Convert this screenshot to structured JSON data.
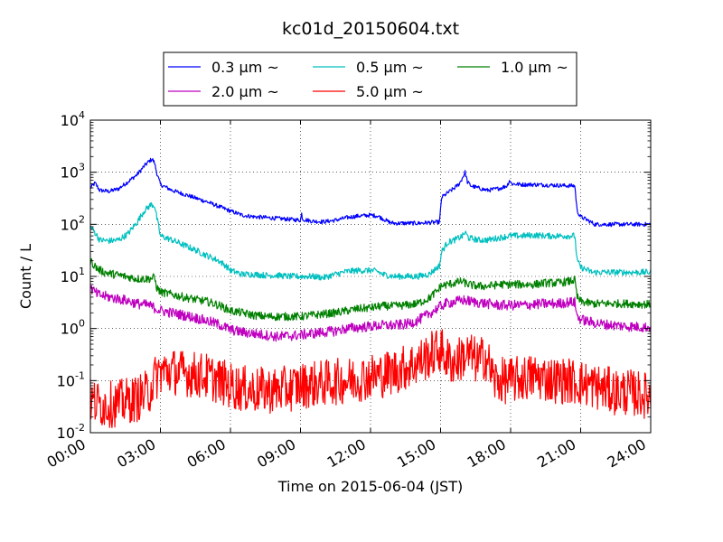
{
  "chart_data": {
    "type": "line",
    "title": "kc01d_20150604.txt",
    "xlabel": "Time on 2015-06-04 (JST)",
    "ylabel": "Count / L",
    "y_scale": "log",
    "ylim": [
      0.01,
      10000
    ],
    "xlim_hours": [
      0,
      24
    ],
    "x_tick_labels": [
      "00:00",
      "03:00",
      "06:00",
      "09:00",
      "12:00",
      "15:00",
      "18:00",
      "21:00",
      "24:00"
    ],
    "y_ticks": [
      {
        "base": "10",
        "exp": "-2"
      },
      {
        "base": "10",
        "exp": "-1"
      },
      {
        "base": "10",
        "exp": "0"
      },
      {
        "base": "10",
        "exp": "1"
      },
      {
        "base": "10",
        "exp": "2"
      },
      {
        "base": "10",
        "exp": "3"
      },
      {
        "base": "10",
        "exp": "4"
      }
    ],
    "grid": true,
    "legend_position": "top",
    "series": [
      {
        "name": "0.3 μm ~",
        "color": "#0000ff",
        "noise": 0.04,
        "points": [
          [
            0,
            500
          ],
          [
            0.2,
            620
          ],
          [
            0.4,
            450
          ],
          [
            0.8,
            430
          ],
          [
            1.2,
            480
          ],
          [
            1.6,
            650
          ],
          [
            2.0,
            900
          ],
          [
            2.3,
            1300
          ],
          [
            2.5,
            1600
          ],
          [
            2.65,
            1800
          ],
          [
            2.75,
            1500
          ],
          [
            2.85,
            950
          ],
          [
            3.0,
            580
          ],
          [
            3.5,
            450
          ],
          [
            4.0,
            380
          ],
          [
            4.5,
            320
          ],
          [
            5.0,
            270
          ],
          [
            5.5,
            220
          ],
          [
            6.0,
            180
          ],
          [
            6.5,
            150
          ],
          [
            7.0,
            140
          ],
          [
            7.5,
            135
          ],
          [
            8.0,
            130
          ],
          [
            8.5,
            125
          ],
          [
            9.0,
            120
          ],
          [
            9.05,
            160
          ],
          [
            9.1,
            125
          ],
          [
            9.5,
            115
          ],
          [
            10.0,
            112
          ],
          [
            10.5,
            120
          ],
          [
            11.0,
            135
          ],
          [
            11.5,
            145
          ],
          [
            12.0,
            150
          ],
          [
            12.3,
            145
          ],
          [
            12.5,
            130
          ],
          [
            12.8,
            110
          ],
          [
            13.0,
            105
          ],
          [
            14.0,
            105
          ],
          [
            14.5,
            108
          ],
          [
            14.95,
            110
          ],
          [
            15.05,
            330
          ],
          [
            15.3,
            400
          ],
          [
            15.6,
            500
          ],
          [
            15.8,
            600
          ],
          [
            15.95,
            800
          ],
          [
            16.05,
            1000
          ],
          [
            16.15,
            650
          ],
          [
            16.3,
            550
          ],
          [
            16.6,
            500
          ],
          [
            17.0,
            450
          ],
          [
            17.3,
            470
          ],
          [
            17.6,
            500
          ],
          [
            17.85,
            550
          ],
          [
            17.95,
            700
          ],
          [
            18.05,
            600
          ],
          [
            18.5,
            580
          ],
          [
            19.0,
            580
          ],
          [
            19.5,
            570
          ],
          [
            20.0,
            560
          ],
          [
            20.5,
            550
          ],
          [
            20.75,
            550
          ],
          [
            20.85,
            180
          ],
          [
            21.0,
            140
          ],
          [
            21.3,
            120
          ],
          [
            21.6,
            100
          ],
          [
            22.0,
            100
          ],
          [
            23.0,
            100
          ],
          [
            24.0,
            100
          ]
        ]
      },
      {
        "name": "0.5 μm ~",
        "color": "#00bfbf",
        "noise": 0.06,
        "points": [
          [
            0,
            90
          ],
          [
            0.15,
            75
          ],
          [
            0.4,
            50
          ],
          [
            0.8,
            48
          ],
          [
            1.2,
            50
          ],
          [
            1.6,
            65
          ],
          [
            2.0,
            110
          ],
          [
            2.3,
            180
          ],
          [
            2.6,
            240
          ],
          [
            2.75,
            230
          ],
          [
            2.85,
            130
          ],
          [
            3.0,
            60
          ],
          [
            3.5,
            50
          ],
          [
            4.0,
            40
          ],
          [
            4.5,
            32
          ],
          [
            5.0,
            25
          ],
          [
            5.5,
            20
          ],
          [
            5.8,
            16
          ],
          [
            6.0,
            13
          ],
          [
            6.5,
            11
          ],
          [
            7.0,
            11
          ],
          [
            7.5,
            10.5
          ],
          [
            8.0,
            10.5
          ],
          [
            8.5,
            10
          ],
          [
            9.0,
            10
          ],
          [
            9.5,
            10
          ],
          [
            10.0,
            9.5
          ],
          [
            10.5,
            11
          ],
          [
            11.0,
            12.5
          ],
          [
            11.5,
            13
          ],
          [
            12.0,
            13
          ],
          [
            12.3,
            12.5
          ],
          [
            12.5,
            11
          ],
          [
            13.0,
            10
          ],
          [
            14.0,
            10
          ],
          [
            14.5,
            11
          ],
          [
            14.95,
            16
          ],
          [
            15.05,
            30
          ],
          [
            15.3,
            45
          ],
          [
            15.6,
            50
          ],
          [
            15.95,
            60
          ],
          [
            16.05,
            70
          ],
          [
            16.2,
            55
          ],
          [
            16.6,
            50
          ],
          [
            17.0,
            50
          ],
          [
            17.5,
            55
          ],
          [
            17.95,
            60
          ],
          [
            18.5,
            60
          ],
          [
            19.0,
            62
          ],
          [
            19.5,
            60
          ],
          [
            20.0,
            60
          ],
          [
            20.5,
            60
          ],
          [
            20.75,
            60
          ],
          [
            20.85,
            20
          ],
          [
            21.0,
            15
          ],
          [
            21.5,
            12
          ],
          [
            22.0,
            12
          ],
          [
            23.0,
            12
          ],
          [
            24.0,
            12
          ]
        ]
      },
      {
        "name": "1.0 μm ~",
        "color": "#008000",
        "noise": 0.08,
        "points": [
          [
            0,
            20
          ],
          [
            0.3,
            14
          ],
          [
            0.6,
            12
          ],
          [
            1.0,
            11
          ],
          [
            1.5,
            10
          ],
          [
            2.0,
            9
          ],
          [
            2.5,
            9
          ],
          [
            2.75,
            9.5
          ],
          [
            2.85,
            6
          ],
          [
            3.0,
            5
          ],
          [
            3.5,
            4.5
          ],
          [
            4.0,
            4
          ],
          [
            4.5,
            3.6
          ],
          [
            5.0,
            3.3
          ],
          [
            5.5,
            2.8
          ],
          [
            6.0,
            2.2
          ],
          [
            6.5,
            2.0
          ],
          [
            7.0,
            1.8
          ],
          [
            7.5,
            1.7
          ],
          [
            8.0,
            1.7
          ],
          [
            8.5,
            1.7
          ],
          [
            9.0,
            1.7
          ],
          [
            9.5,
            1.8
          ],
          [
            10.0,
            1.9
          ],
          [
            10.5,
            2.0
          ],
          [
            11.0,
            2.2
          ],
          [
            11.5,
            2.4
          ],
          [
            12.0,
            2.5
          ],
          [
            12.5,
            2.7
          ],
          [
            13.0,
            2.7
          ],
          [
            13.5,
            2.8
          ],
          [
            14.0,
            3.0
          ],
          [
            14.5,
            3.8
          ],
          [
            14.9,
            5.5
          ],
          [
            15.0,
            6.5
          ],
          [
            15.3,
            7
          ],
          [
            15.6,
            7.5
          ],
          [
            15.9,
            8
          ],
          [
            16.2,
            7
          ],
          [
            16.6,
            6.5
          ],
          [
            17.0,
            6.5
          ],
          [
            17.5,
            7
          ],
          [
            18.0,
            7
          ],
          [
            18.5,
            7
          ],
          [
            19.0,
            7
          ],
          [
            19.5,
            7.5
          ],
          [
            20.0,
            7.5
          ],
          [
            20.5,
            8
          ],
          [
            20.75,
            8.5
          ],
          [
            20.85,
            4
          ],
          [
            21.0,
            3.3
          ],
          [
            21.5,
            3
          ],
          [
            22.0,
            3
          ],
          [
            23.0,
            3
          ],
          [
            24.0,
            2.9
          ]
        ]
      },
      {
        "name": "2.0 μm ~",
        "color": "#bf00bf",
        "noise": 0.1,
        "points": [
          [
            0,
            6
          ],
          [
            0.3,
            4.5
          ],
          [
            0.8,
            4
          ],
          [
            1.5,
            3.5
          ],
          [
            2.0,
            3.0
          ],
          [
            2.5,
            2.8
          ],
          [
            3.0,
            2.2
          ],
          [
            3.5,
            2.0
          ],
          [
            4.0,
            1.8
          ],
          [
            4.5,
            1.6
          ],
          [
            5.0,
            1.4
          ],
          [
            5.5,
            1.2
          ],
          [
            6.0,
            0.95
          ],
          [
            6.5,
            0.85
          ],
          [
            7.0,
            0.8
          ],
          [
            7.5,
            0.75
          ],
          [
            8.0,
            0.7
          ],
          [
            8.5,
            0.72
          ],
          [
            9.0,
            0.75
          ],
          [
            9.5,
            0.8
          ],
          [
            10.0,
            0.85
          ],
          [
            10.5,
            0.9
          ],
          [
            11.0,
            1.0
          ],
          [
            11.5,
            1.05
          ],
          [
            12.0,
            1.1
          ],
          [
            12.5,
            1.15
          ],
          [
            13.0,
            1.15
          ],
          [
            13.5,
            1.2
          ],
          [
            14.0,
            1.4
          ],
          [
            14.5,
            1.9
          ],
          [
            14.9,
            2.5
          ],
          [
            15.2,
            3.0
          ],
          [
            15.5,
            3.2
          ],
          [
            16.0,
            3.5
          ],
          [
            16.5,
            3.2
          ],
          [
            17.0,
            3.0
          ],
          [
            17.5,
            2.8
          ],
          [
            18.0,
            2.8
          ],
          [
            18.5,
            2.8
          ],
          [
            19.0,
            2.9
          ],
          [
            19.5,
            3.0
          ],
          [
            20.0,
            3.0
          ],
          [
            20.5,
            3.2
          ],
          [
            20.75,
            3.2
          ],
          [
            20.85,
            1.7
          ],
          [
            21.0,
            1.5
          ],
          [
            21.5,
            1.3
          ],
          [
            22.0,
            1.2
          ],
          [
            23.0,
            1.1
          ],
          [
            24.0,
            1.05
          ]
        ]
      },
      {
        "name": "5.0 μm ~",
        "color": "#ff0000",
        "noise": 0.45,
        "points": [
          [
            0,
            0.04
          ],
          [
            0.5,
            0.035
          ],
          [
            1.0,
            0.035
          ],
          [
            1.5,
            0.04
          ],
          [
            2.0,
            0.045
          ],
          [
            2.5,
            0.06
          ],
          [
            2.7,
            0.1
          ],
          [
            3.0,
            0.15
          ],
          [
            3.5,
            0.15
          ],
          [
            4.0,
            0.14
          ],
          [
            4.5,
            0.13
          ],
          [
            5.0,
            0.12
          ],
          [
            5.5,
            0.1
          ],
          [
            6.0,
            0.08
          ],
          [
            6.5,
            0.07
          ],
          [
            7.0,
            0.065
          ],
          [
            7.5,
            0.065
          ],
          [
            8.0,
            0.065
          ],
          [
            8.5,
            0.07
          ],
          [
            9.0,
            0.08
          ],
          [
            9.5,
            0.085
          ],
          [
            10.0,
            0.09
          ],
          [
            10.5,
            0.095
          ],
          [
            11.0,
            0.1
          ],
          [
            11.5,
            0.11
          ],
          [
            12.0,
            0.12
          ],
          [
            12.5,
            0.13
          ],
          [
            13.0,
            0.15
          ],
          [
            13.5,
            0.18
          ],
          [
            14.0,
            0.22
          ],
          [
            14.5,
            0.3
          ],
          [
            15.0,
            0.4
          ],
          [
            15.3,
            0.25
          ],
          [
            15.6,
            0.22
          ],
          [
            16.0,
            0.3
          ],
          [
            16.3,
            0.3
          ],
          [
            16.6,
            0.22
          ],
          [
            16.9,
            0.3
          ],
          [
            17.0,
            0.25
          ],
          [
            17.3,
            0.1
          ],
          [
            17.6,
            0.1
          ],
          [
            18.0,
            0.1
          ],
          [
            18.5,
            0.11
          ],
          [
            19.0,
            0.12
          ],
          [
            19.5,
            0.11
          ],
          [
            20.0,
            0.1
          ],
          [
            20.5,
            0.1
          ],
          [
            21.0,
            0.09
          ],
          [
            21.5,
            0.08
          ],
          [
            22.0,
            0.07
          ],
          [
            22.5,
            0.06
          ],
          [
            23.0,
            0.06
          ],
          [
            23.5,
            0.055
          ],
          [
            24.0,
            0.05
          ]
        ]
      }
    ],
    "legend_columns": 3
  }
}
